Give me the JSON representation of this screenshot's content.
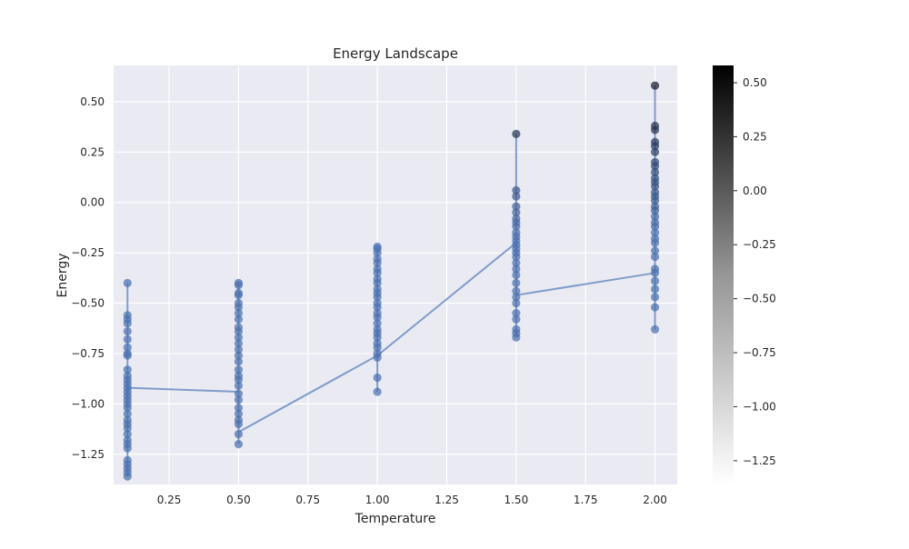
{
  "chart_data": {
    "type": "scatter",
    "title": "Energy Landscape",
    "xlabel": "Temperature",
    "ylabel": "Energy",
    "xlim": [
      0.05,
      2.08
    ],
    "ylim": [
      -1.4,
      0.68
    ],
    "grid": true,
    "x_ticks": [
      0.25,
      0.5,
      0.75,
      1.0,
      1.25,
      1.5,
      1.75,
      2.0
    ],
    "x_tick_labels": [
      "0.25",
      "0.50",
      "0.75",
      "1.00",
      "1.25",
      "1.50",
      "1.75",
      "2.00"
    ],
    "y_ticks": [
      -1.25,
      -1.0,
      -0.75,
      -0.5,
      -0.25,
      0.0,
      0.25,
      0.5
    ],
    "y_tick_labels": [
      "−1.25",
      "−1.00",
      "−0.75",
      "−0.50",
      "−0.25",
      "0.00",
      "0.25",
      "0.50"
    ],
    "colorbar": {
      "colormap": "Greys",
      "range": [
        -1.36,
        0.58
      ],
      "ticks": [
        0.5,
        0.25,
        0.0,
        -0.25,
        -0.5,
        -0.75,
        -1.0,
        -1.25
      ],
      "tick_labels": [
        "0.50",
        "0.25",
        "0.00",
        "−0.25",
        "−0.50",
        "−0.75",
        "−1.00",
        "−1.25"
      ]
    },
    "marker_color": "#4c72b0",
    "line_color": "#7f9ccb",
    "mean_line": {
      "x": [
        0.1,
        0.5,
        0.5,
        1.0,
        1.5,
        1.5,
        2.0
      ],
      "y": [
        -0.92,
        -0.94,
        -1.14,
        -0.76,
        -0.2,
        -0.46,
        -0.35
      ]
    },
    "groups": [
      {
        "x": 0.1,
        "y": [
          -0.4,
          -0.56,
          -0.58,
          -0.6,
          -0.64,
          -0.68,
          -0.72,
          -0.75,
          -0.76,
          -0.83,
          -0.86,
          -0.88,
          -0.9,
          -0.92,
          -0.94,
          -0.96,
          -0.98,
          -1.0,
          -1.02,
          -1.05,
          -1.08,
          -1.1,
          -1.12,
          -1.15,
          -1.18,
          -1.2,
          -1.22,
          -1.28,
          -1.3,
          -1.32,
          -1.34,
          -1.36
        ]
      },
      {
        "x": 0.5,
        "y": [
          -0.4,
          -0.41,
          -0.45,
          -0.46,
          -0.5,
          -0.52,
          -0.55,
          -0.58,
          -0.62,
          -0.64,
          -0.67,
          -0.7,
          -0.73,
          -0.76,
          -0.79,
          -0.83,
          -0.86,
          -0.88,
          -0.91,
          -0.95,
          -0.98,
          -1.02,
          -1.05,
          -1.08,
          -1.1,
          -1.15,
          -1.2
        ]
      },
      {
        "x": 1.0,
        "y": [
          -0.22,
          -0.23,
          -0.25,
          -0.28,
          -0.3,
          -0.33,
          -0.35,
          -0.38,
          -0.4,
          -0.43,
          -0.45,
          -0.47,
          -0.5,
          -0.52,
          -0.55,
          -0.57,
          -0.6,
          -0.63,
          -0.65,
          -0.67,
          -0.7,
          -0.72,
          -0.75,
          -0.77,
          -0.87,
          -0.94
        ]
      },
      {
        "x": 1.5,
        "y": [
          0.34,
          0.06,
          0.03,
          -0.02,
          -0.05,
          -0.08,
          -0.1,
          -0.12,
          -0.15,
          -0.17,
          -0.19,
          -0.21,
          -0.23,
          -0.25,
          -0.27,
          -0.3,
          -0.33,
          -0.36,
          -0.4,
          -0.44,
          -0.47,
          -0.5,
          -0.55,
          -0.58,
          -0.63,
          -0.65,
          -0.67
        ]
      },
      {
        "x": 2.0,
        "y": [
          0.58,
          0.38,
          0.36,
          0.3,
          0.28,
          0.25,
          0.2,
          0.18,
          0.15,
          0.12,
          0.1,
          0.08,
          0.05,
          0.03,
          0.01,
          -0.02,
          -0.04,
          -0.07,
          -0.1,
          -0.12,
          -0.15,
          -0.18,
          -0.2,
          -0.24,
          -0.27,
          -0.33,
          -0.35,
          -0.39,
          -0.43,
          -0.47,
          -0.52,
          -0.63
        ]
      }
    ]
  }
}
